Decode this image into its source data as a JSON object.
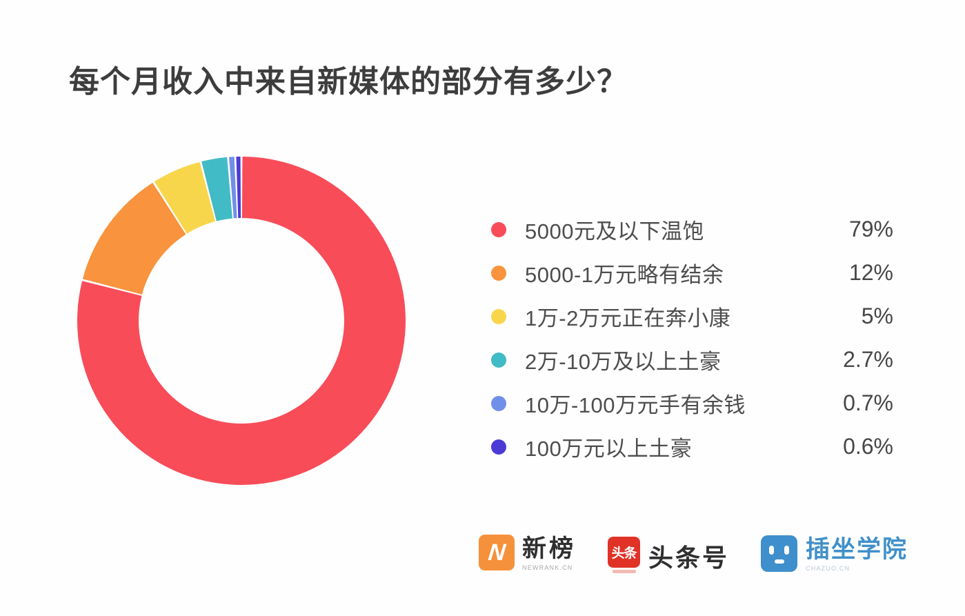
{
  "title": "每个月收入中来自新媒体的部分有多少？",
  "chart_data": {
    "type": "pie",
    "subtype": "donut",
    "title": "每个月收入中来自新媒体的部分有多少？",
    "legend_position": "right",
    "start_angle_deg_from_top": 0,
    "direction": "clockwise",
    "segments": [
      {
        "label": "5000元及以下温饱",
        "value": 79,
        "display": "79%",
        "color": "#f84c59"
      },
      {
        "label": "5000-1万元略有结余",
        "value": 12,
        "display": "12%",
        "color": "#f9933d"
      },
      {
        "label": "1万-2万元正在奔小康",
        "value": 5,
        "display": "5%",
        "color": "#f8d64c"
      },
      {
        "label": "2万-10万及以上土豪",
        "value": 2.7,
        "display": "2.7%",
        "color": "#41bbc5"
      },
      {
        "label": "10万-100万元手有余钱",
        "value": 0.7,
        "display": "0.7%",
        "color": "#6f8fe8"
      },
      {
        "label": "100万元以上土豪",
        "value": 0.6,
        "display": "0.6%",
        "color": "#4b3ad6"
      }
    ]
  },
  "footer": {
    "newrank": {
      "name": "新榜",
      "sub": "NEWRANK.CN",
      "logo_letter": "N",
      "color": "#f5913b"
    },
    "toutiao": {
      "name": "头条号",
      "badge": "头条",
      "color": "#e03226"
    },
    "chazuo": {
      "name": "插坐学院",
      "sub": "CHAZUO.CN",
      "color": "#3e8fcc",
      "text_color": "#4090c9"
    }
  }
}
